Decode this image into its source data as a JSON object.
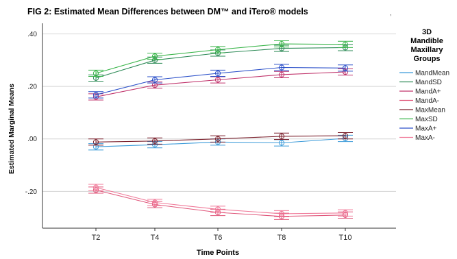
{
  "figure": {
    "title": "FIG 2: Estimated Mean Differences between DM™ and iTero® models",
    "stray_mark": ","
  },
  "chart_data": {
    "type": "line",
    "x": [
      "T2",
      "T4",
      "T6",
      "T8",
      "T10"
    ],
    "xlabel": "Time Points",
    "ylabel": "Estimated Marginal Means",
    "ylim": [
      -0.34,
      0.43
    ],
    "yticks": [
      0.4,
      0.2,
      0.0,
      -0.2
    ],
    "ytick_labels": [
      ".40",
      ".20",
      ".00",
      "-.20"
    ],
    "grid": "horizontal",
    "error_bars": true,
    "legend": {
      "title": "3D Mandible Maxillary Groups",
      "title_lines": [
        "3D",
        "Mandible",
        "Maxillary",
        "Groups"
      ],
      "position": "right"
    },
    "series": [
      {
        "name": "MandMean",
        "color": "#3a9ad9",
        "values": [
          -0.03,
          -0.022,
          -0.012,
          -0.015,
          0.002
        ],
        "err": 0.012
      },
      {
        "name": "MandSD",
        "color": "#2e8b57",
        "values": [
          0.232,
          0.3,
          0.327,
          0.345,
          0.348
        ],
        "err": 0.012
      },
      {
        "name": "MandA+",
        "color": "#c0336b",
        "values": [
          0.16,
          0.205,
          0.225,
          0.245,
          0.255
        ],
        "err": 0.012
      },
      {
        "name": "MandA-",
        "color": "#e0567a",
        "values": [
          -0.195,
          -0.25,
          -0.28,
          -0.295,
          -0.29
        ],
        "err": 0.012
      },
      {
        "name": "MaxMean",
        "color": "#7a1f2b",
        "values": [
          -0.012,
          -0.008,
          0.0,
          0.01,
          0.012
        ],
        "err": 0.012
      },
      {
        "name": "MaxSD",
        "color": "#3ab54a",
        "values": [
          0.25,
          0.315,
          0.34,
          0.362,
          0.36
        ],
        "err": 0.012
      },
      {
        "name": "MaxA+",
        "color": "#2a4fc9",
        "values": [
          0.168,
          0.225,
          0.25,
          0.272,
          0.27
        ],
        "err": 0.012
      },
      {
        "name": "MaxA-",
        "color": "#f07898",
        "values": [
          -0.185,
          -0.242,
          -0.268,
          -0.285,
          -0.282
        ],
        "err": 0.012
      }
    ]
  }
}
